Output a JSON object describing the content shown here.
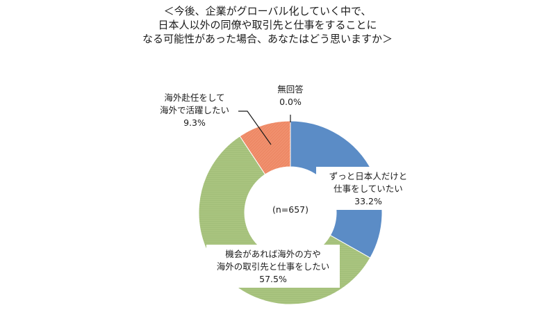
{
  "chart_data": {
    "type": "pie",
    "title_lines": [
      "＜今後、企業がグローバル化していく中で、",
      "日本人以外の同僚や取引先と仕事をすることに",
      "なる可能性があった場合、あなたはどう思いますか＞"
    ],
    "center_text": "(n=657)",
    "slices": [
      {
        "label_lines": [
          "ずっと日本人だけと",
          "仕事をしていたい"
        ],
        "value_text": "33.2%",
        "value": 33.2,
        "color": "#5b8cc6"
      },
      {
        "label_lines": [
          "機会があれば海外の方や",
          "海外の取引先と仕事をしたい"
        ],
        "value_text": "57.5%",
        "value": 57.5,
        "color": "#a9c47f"
      },
      {
        "label_lines": [
          "海外赴任をして",
          "海外で活躍したい"
        ],
        "value_text": "9.3%",
        "value": 9.3,
        "color": "#f0906e"
      },
      {
        "label_lines": [
          "無回答"
        ],
        "value_text": "0.0%",
        "value": 0.0,
        "color": "#999999"
      }
    ]
  }
}
